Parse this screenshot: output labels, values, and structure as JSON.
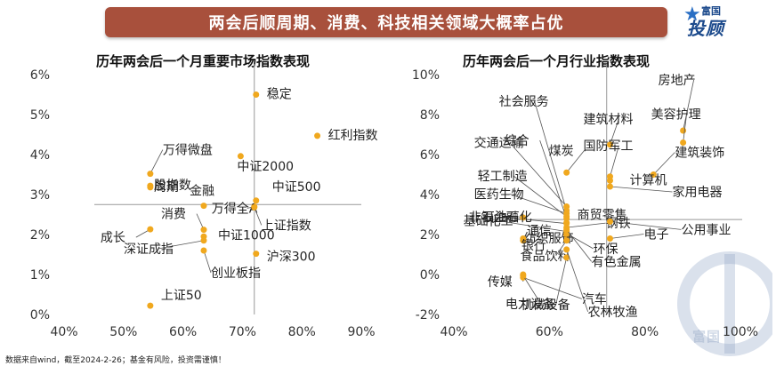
{
  "banner": {
    "title": "两会后顺周期、消费、科技相关领域大概率占优"
  },
  "logo": {
    "top": "富国",
    "main": "投顾",
    "watermark": "富国"
  },
  "footer": {
    "text": "数据来自wind，截至2024-2-26；基金有风险，投资需谨慎！"
  },
  "colors": {
    "point": "#f0a81e",
    "banner": "#a8503c",
    "ref_line": "#999999",
    "leader": "#555555"
  },
  "chart_data": [
    {
      "type": "scatter",
      "title": "历年两会后一个月重要市场指数表现",
      "xlabel": "",
      "ylabel": "",
      "xlim": [
        0.4,
        0.9
      ],
      "ylim": [
        0.0,
        0.06
      ],
      "xticks": [
        "40%",
        "50%",
        "60%",
        "70%",
        "80%",
        "90%"
      ],
      "yticks": [
        "0%",
        "1%",
        "2%",
        "3%",
        "4%",
        "5%",
        "6%"
      ],
      "ref_x": 0.72,
      "ref_y": 0.0275,
      "points": [
        {
          "label": "稳定",
          "x": 0.723,
          "y": 0.055
        },
        {
          "label": "红利指数",
          "x": 0.826,
          "y": 0.0447
        },
        {
          "label": "万得微盘",
          "x": 0.545,
          "y": 0.0352
        },
        {
          "label": "中证2000",
          "x": 0.697,
          "y": 0.0396
        },
        {
          "label": "股指数",
          "x": 0.545,
          "y": 0.0322
        },
        {
          "label": "周期",
          "x": 0.545,
          "y": 0.0318
        },
        {
          "label": "金融",
          "x": 0.635,
          "y": 0.0272
        },
        {
          "label": "中证500",
          "x": 0.723,
          "y": 0.0285
        },
        {
          "label": "万得全A",
          "x": 0.72,
          "y": 0.027
        },
        {
          "label": "上证指数",
          "x": 0.72,
          "y": 0.0268
        },
        {
          "label": "消费",
          "x": 0.635,
          "y": 0.0212
        },
        {
          "label": "中证1000",
          "x": 0.635,
          "y": 0.0195
        },
        {
          "label": "成长",
          "x": 0.545,
          "y": 0.0213
        },
        {
          "label": "深证成指",
          "x": 0.635,
          "y": 0.0185
        },
        {
          "label": "沪深300",
          "x": 0.723,
          "y": 0.0152
        },
        {
          "label": "创业板指",
          "x": 0.635,
          "y": 0.016
        },
        {
          "label": "上证50",
          "x": 0.545,
          "y": 0.0022
        }
      ]
    },
    {
      "type": "scatter",
      "title": "历年两会后一个月行业指数表现",
      "xlabel": "",
      "ylabel": "",
      "xlim": [
        0.4,
        1.0
      ],
      "ylim": [
        -0.02,
        0.1
      ],
      "xticks": [
        "40%",
        "60%",
        "80%",
        "100%"
      ],
      "yticks": [
        "-2%",
        "0%",
        "2%",
        "4%",
        "6%",
        "8%",
        "10%"
      ],
      "ref_x": 0.72,
      "ref_y": 0.0275,
      "points": [
        {
          "label": "社会服务",
          "x": 0.636,
          "y": 0.032
        },
        {
          "label": "房地产",
          "x": 0.88,
          "y": 0.072
        },
        {
          "label": "综合",
          "x": 0.636,
          "y": 0.028
        },
        {
          "label": "美容护理",
          "x": 0.88,
          "y": 0.066
        },
        {
          "label": "建筑材料",
          "x": 0.727,
          "y": 0.065
        },
        {
          "label": "交通运输",
          "x": 0.636,
          "y": 0.034
        },
        {
          "label": "煤炭",
          "x": 0.636,
          "y": 0.051
        },
        {
          "label": "建筑装饰",
          "x": 0.818,
          "y": 0.05
        },
        {
          "label": "轻工制造",
          "x": 0.636,
          "y": 0.029
        },
        {
          "label": "国防军工",
          "x": 0.727,
          "y": 0.049
        },
        {
          "label": "医药生物",
          "x": 0.636,
          "y": 0.0305
        },
        {
          "label": "计算机",
          "x": 0.727,
          "y": 0.047
        },
        {
          "label": "非银金融",
          "x": 0.636,
          "y": 0.0255
        },
        {
          "label": "商贸零售",
          "x": 0.636,
          "y": 0.026
        },
        {
          "label": "家用电器",
          "x": 0.727,
          "y": 0.044
        },
        {
          "label": "基础化工",
          "x": 0.636,
          "y": 0.0215
        },
        {
          "label": "钢铁",
          "x": 0.636,
          "y": 0.0235
        },
        {
          "label": "纺织服饰",
          "x": 0.636,
          "y": 0.0195
        },
        {
          "label": "电子",
          "x": 0.727,
          "y": 0.018
        },
        {
          "label": "通信",
          "x": 0.545,
          "y": 0.018
        },
        {
          "label": "食品饮料",
          "x": 0.636,
          "y": 0.017
        },
        {
          "label": "公用事业",
          "x": 0.727,
          "y": 0.0265
        },
        {
          "label": "石油石化",
          "x": 0.545,
          "y": 0.0285
        },
        {
          "label": "银行",
          "x": 0.545,
          "y": 0.017
        },
        {
          "label": "环保",
          "x": 0.636,
          "y": 0.0205
        },
        {
          "label": "机械设备",
          "x": 0.636,
          "y": 0.0085
        },
        {
          "label": "有色金属",
          "x": 0.636,
          "y": 0.0225
        },
        {
          "label": "传媒",
          "x": 0.545,
          "y": 0.0
        },
        {
          "label": "农林牧渔",
          "x": 0.636,
          "y": 0.0125
        },
        {
          "label": "汽车",
          "x": 0.545,
          "y": -0.0015
        },
        {
          "label": "电力设备",
          "x": 0.545,
          "y": -0.0005
        }
      ]
    }
  ]
}
